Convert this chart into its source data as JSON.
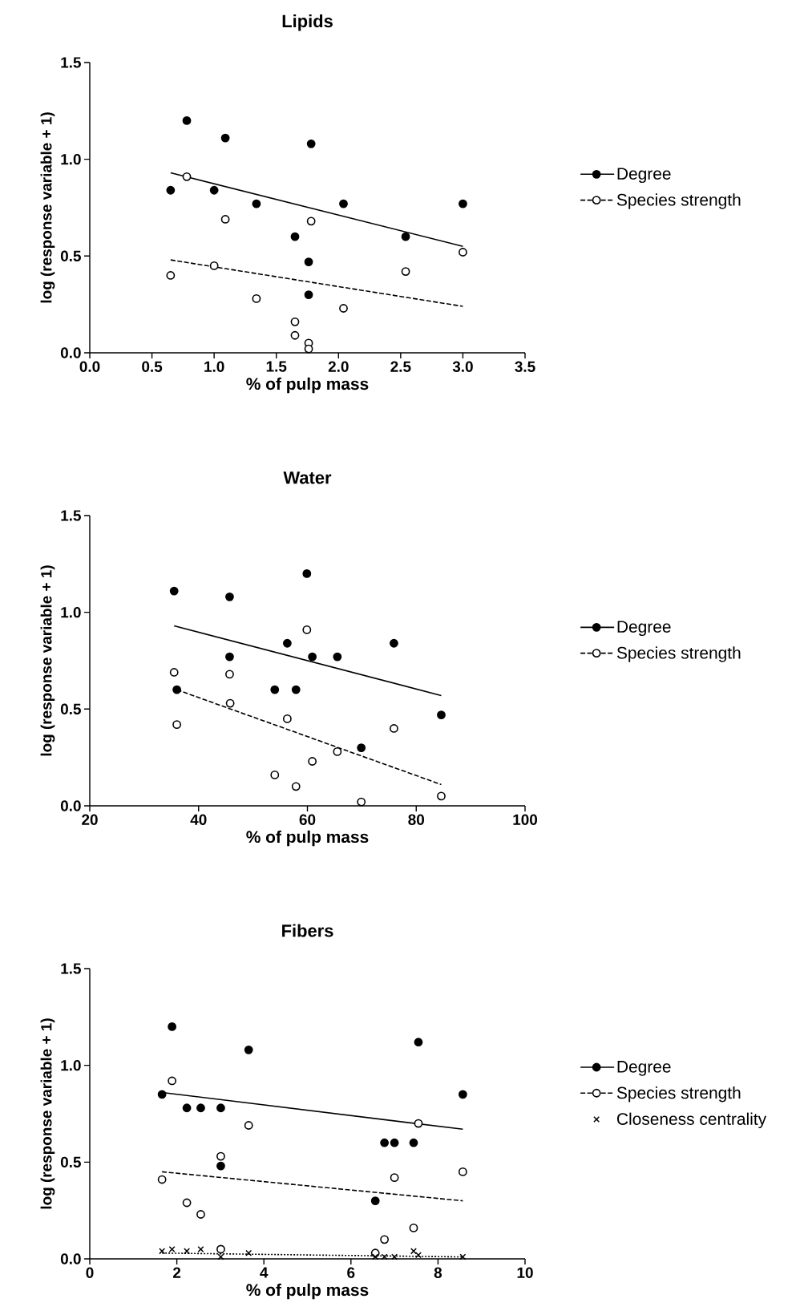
{
  "chart_data": [
    {
      "type": "scatter",
      "title": "Lipids",
      "xlabel": "% of pulp mass",
      "ylabel": "log (response variable + 1)",
      "xlim": [
        0,
        3.5
      ],
      "ylim": [
        0,
        1.5
      ],
      "xticks": [
        {
          "value": 0,
          "label": "0.0"
        },
        {
          "value": 0.5,
          "label": "0.5"
        },
        {
          "value": 1,
          "label": "1.0"
        },
        {
          "value": 1.5,
          "label": "1.5"
        },
        {
          "value": 2,
          "label": "2.0"
        },
        {
          "value": 2.5,
          "label": "2.5"
        },
        {
          "value": 3,
          "label": "3.0"
        },
        {
          "value": 3.5,
          "label": "3.5"
        }
      ],
      "yticks": [
        {
          "value": 0,
          "label": "0.0"
        },
        {
          "value": 0.5,
          "label": "0.5"
        },
        {
          "value": 1,
          "label": "1.0"
        },
        {
          "value": 1.5,
          "label": "1.5"
        }
      ],
      "legend": "right",
      "series": [
        {
          "name": "Degree",
          "marker": "circle",
          "color": "#000000",
          "x": [
            0.78,
            1.09,
            1.78,
            0.65,
            1.0,
            1.34,
            2.04,
            3.0,
            1.65,
            2.54,
            1.76,
            1.76
          ],
          "values": [
            1.2,
            1.11,
            1.08,
            0.84,
            0.84,
            0.77,
            0.77,
            0.77,
            0.6,
            0.6,
            0.47,
            0.3
          ]
        },
        {
          "type": "line",
          "marker": "none",
          "line_style": "solid",
          "color": "#000000",
          "x": [
            0.65,
            3.0
          ],
          "values": [
            0.93,
            0.55
          ]
        },
        {
          "name": "Species strength",
          "marker": "circle",
          "color": "#ffffff",
          "x": [
            0.78,
            1.09,
            1.78,
            3.0,
            1.0,
            0.65,
            2.54,
            1.34,
            2.04,
            1.65,
            1.65,
            1.76,
            1.76
          ],
          "values": [
            0.91,
            0.69,
            0.68,
            0.52,
            0.45,
            0.4,
            0.42,
            0.28,
            0.23,
            0.16,
            0.09,
            0.05,
            0.02
          ]
        },
        {
          "type": "line",
          "marker": "none",
          "line_style": "dashed",
          "color": "#000000",
          "x": [
            0.65,
            3.0
          ],
          "values": [
            0.48,
            0.24
          ]
        }
      ]
    },
    {
      "type": "scatter",
      "title": "Water",
      "xlabel": "% of pulp mass",
      "ylabel": "log (response variable + 1)",
      "xlim": [
        20,
        100
      ],
      "ylim": [
        0,
        1.5
      ],
      "xticks": [
        20,
        40,
        60,
        80,
        100
      ],
      "yticks": [
        {
          "value": 0,
          "label": "0.0"
        },
        {
          "value": 0.5,
          "label": "0.5"
        },
        {
          "value": 1,
          "label": "1.0"
        },
        {
          "value": 1.5,
          "label": "1.5"
        }
      ],
      "legend": "right",
      "series": [
        {
          "name": "Degree",
          "marker": "circle",
          "color": "#000000",
          "x": [
            35.5,
            45.7,
            59.9,
            56.3,
            75.9,
            45.7,
            60.9,
            65.5,
            36.0,
            54.0,
            57.9,
            84.6,
            69.9
          ],
          "values": [
            1.11,
            1.08,
            1.2,
            0.84,
            0.84,
            0.77,
            0.77,
            0.77,
            0.6,
            0.6,
            0.6,
            0.47,
            0.3
          ]
        },
        {
          "type": "line",
          "marker": "none",
          "line_style": "solid",
          "color": "#000000",
          "x": [
            35.5,
            84.6
          ],
          "values": [
            0.93,
            0.57
          ]
        },
        {
          "name": "Species strength",
          "marker": "circle",
          "color": "#ffffff",
          "x": [
            59.9,
            35.5,
            45.7,
            45.8,
            36.0,
            56.3,
            75.9,
            65.5,
            60.9,
            54.0,
            57.9,
            69.9,
            84.6
          ],
          "values": [
            0.91,
            0.69,
            0.68,
            0.53,
            0.42,
            0.45,
            0.4,
            0.28,
            0.23,
            0.16,
            0.1,
            0.02,
            0.05
          ]
        },
        {
          "type": "line",
          "marker": "none",
          "line_style": "dashed",
          "color": "#000000",
          "x": [
            36.0,
            84.6
          ],
          "values": [
            0.6,
            0.11
          ]
        }
      ]
    },
    {
      "type": "scatter",
      "title": "Fibers",
      "xlabel": "% of pulp mass",
      "ylabel": "log (response variable + 1)",
      "xlim": [
        0,
        10
      ],
      "ylim": [
        0,
        1.5
      ],
      "xticks": [
        0,
        2,
        4,
        6,
        8,
        10
      ],
      "yticks": [
        {
          "value": 0,
          "label": "0.0"
        },
        {
          "value": 0.5,
          "label": "0.5"
        },
        {
          "value": 1,
          "label": "1.0"
        },
        {
          "value": 1.5,
          "label": "1.5"
        }
      ],
      "legend": "right",
      "series": [
        {
          "name": "Degree",
          "marker": "circle",
          "color": "#000000",
          "x": [
            1.89,
            3.65,
            7.55,
            1.66,
            8.57,
            2.23,
            2.55,
            3.01,
            3.01,
            6.77,
            7.0,
            7.44,
            6.56
          ],
          "values": [
            1.2,
            1.08,
            1.12,
            0.85,
            0.85,
            0.78,
            0.78,
            0.78,
            0.48,
            0.6,
            0.6,
            0.6,
            0.3
          ]
        },
        {
          "type": "line",
          "marker": "none",
          "line_style": "solid",
          "color": "#000000",
          "x": [
            1.66,
            8.57
          ],
          "values": [
            0.86,
            0.67
          ]
        },
        {
          "name": "Species strength",
          "marker": "circle",
          "color": "#ffffff",
          "x": [
            1.89,
            3.65,
            7.55,
            3.01,
            1.66,
            8.57,
            7.0,
            2.23,
            2.55,
            7.44,
            6.77,
            3.01,
            6.56
          ],
          "values": [
            0.92,
            0.69,
            0.7,
            0.53,
            0.41,
            0.45,
            0.42,
            0.29,
            0.23,
            0.16,
            0.1,
            0.05,
            0.03
          ]
        },
        {
          "type": "line",
          "marker": "none",
          "line_style": "dashed",
          "color": "#000000",
          "x": [
            1.66,
            8.57
          ],
          "values": [
            0.45,
            0.3
          ]
        },
        {
          "name": "Closeness centrality",
          "marker": "cross",
          "color": "#000000",
          "x": [
            1.66,
            1.89,
            2.23,
            2.55,
            3.01,
            3.65,
            6.56,
            6.77,
            7.0,
            7.44,
            7.55,
            8.57
          ],
          "values": [
            0.04,
            0.05,
            0.04,
            0.05,
            0.01,
            0.03,
            0.01,
            0.01,
            0.01,
            0.04,
            0.02,
            0.01
          ]
        },
        {
          "type": "line",
          "marker": "none",
          "line_style": "dotted",
          "color": "#000000",
          "x": [
            1.66,
            8.57
          ],
          "values": [
            0.03,
            0.01
          ]
        }
      ]
    }
  ]
}
